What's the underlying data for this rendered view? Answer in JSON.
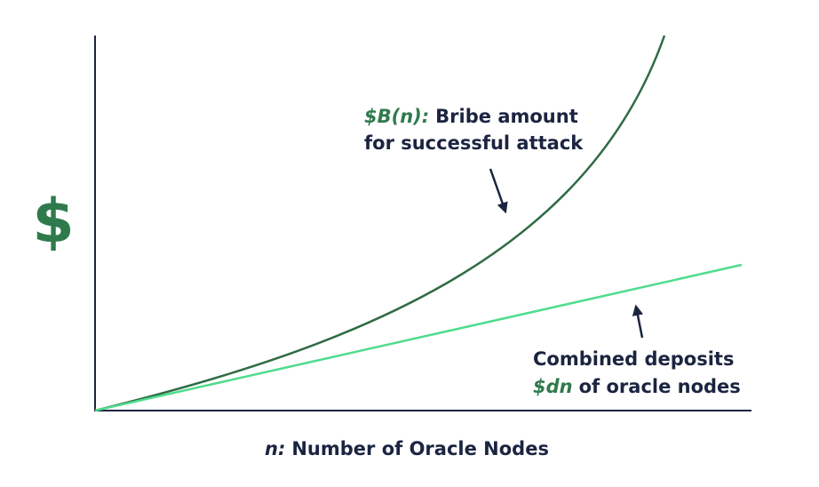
{
  "axes": {
    "y_label": "$",
    "x_label_var": "n:",
    "x_label": "Number of Oracle Nodes"
  },
  "annotations": [
    {
      "var": "$B(n):",
      "text": "Bribe amount",
      "line2": "for successful attack"
    },
    {
      "line1": "Combined deposits",
      "var": "$dn",
      "text": "of oracle nodes"
    }
  ]
}
